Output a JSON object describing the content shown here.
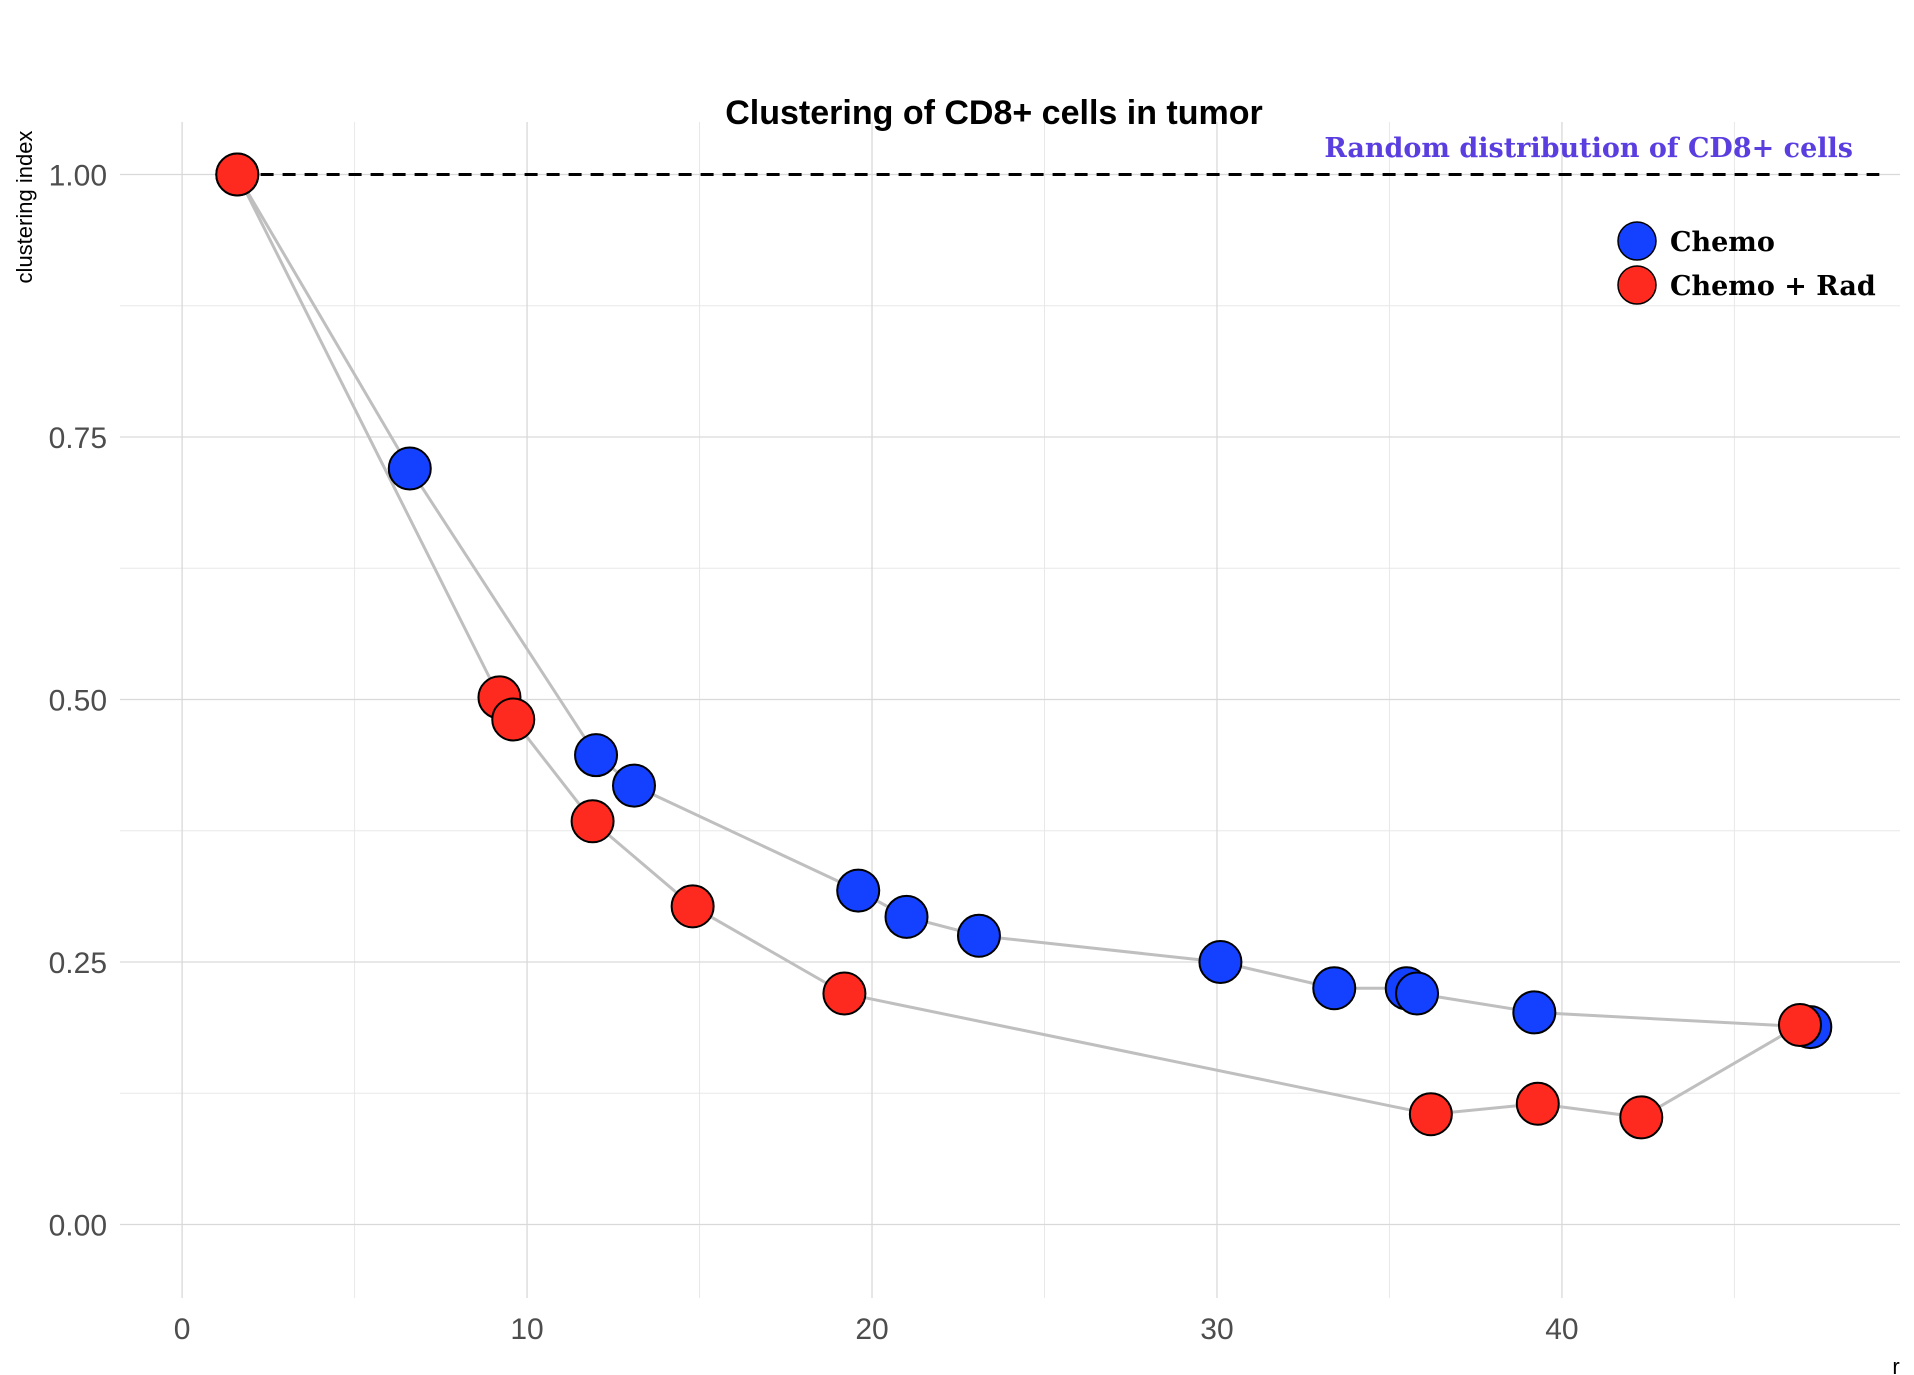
{
  "chart_data": {
    "type": "line",
    "title": "Clustering of CD8+ cells in tumor",
    "xlabel": "r",
    "ylabel": "clustering index",
    "xlim": [
      -1.8,
      49.8
    ],
    "ylim": [
      -0.07,
      1.05
    ],
    "x_ticks": [
      0,
      10,
      20,
      30,
      40
    ],
    "x_tick_labels": [
      "0",
      "10",
      "20",
      "30",
      "40"
    ],
    "y_ticks": [
      0.0,
      0.25,
      0.5,
      0.75,
      1.0
    ],
    "y_tick_labels": [
      "0.00",
      "0.25",
      "0.50",
      "0.75",
      "1.00"
    ],
    "grid": true,
    "legend_position": "top-right",
    "reference_line": {
      "y": 1.0,
      "style": "dashed",
      "label": "Random distribution of CD8+ cells",
      "label_color": "#5b3ee0"
    },
    "line_color": "#bfbfbf",
    "marker_outline": "#000000",
    "series": [
      {
        "name": "Chemo",
        "color": "#1440ff",
        "x": [
          1.6,
          6.6,
          12.0,
          13.1,
          19.6,
          21.0,
          23.1,
          30.1,
          33.4,
          35.5,
          35.8,
          39.2,
          47.2
        ],
        "y": [
          1.0,
          0.72,
          0.447,
          0.418,
          0.318,
          0.293,
          0.275,
          0.25,
          0.225,
          0.225,
          0.22,
          0.202,
          0.188
        ]
      },
      {
        "name": "Chemo + Rad",
        "color": "#ff2a1f",
        "x": [
          1.6,
          9.2,
          9.6,
          11.9,
          14.8,
          19.2,
          36.2,
          39.3,
          42.3,
          46.9
        ],
        "y": [
          1.0,
          0.502,
          0.481,
          0.384,
          0.303,
          0.22,
          0.105,
          0.115,
          0.102,
          0.19
        ]
      }
    ]
  }
}
